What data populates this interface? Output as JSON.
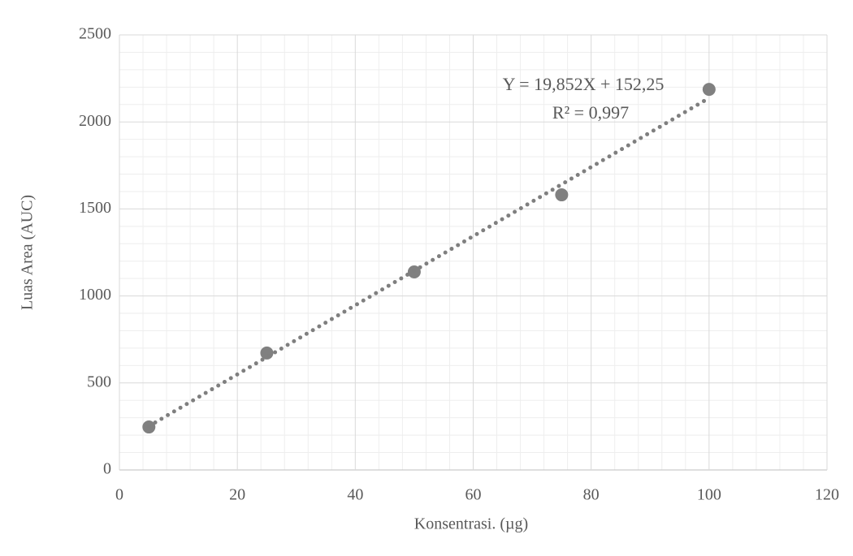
{
  "chart_data": {
    "type": "scatter",
    "x_label": "Konsentrasi. (µg)",
    "y_label": "Luas Area (AUC)",
    "x": [
      5,
      25,
      50,
      75,
      100
    ],
    "values": [
      247,
      672,
      1138,
      1581,
      2187
    ],
    "color": "#808080",
    "xlim": [
      0,
      120
    ],
    "xticks": [
      0,
      20,
      40,
      60,
      80,
      100,
      120
    ],
    "ylim": [
      0,
      2500
    ],
    "yticks": [
      0,
      500,
      1000,
      1500,
      2000,
      2500
    ],
    "grid": true,
    "minor_grid": true,
    "trendline": {
      "equation": "Y = 19,852X + 152,25",
      "r_squared": "R² = 0,997",
      "slope": 19.852,
      "intercept": 152.25,
      "color": "#7f7f7f"
    }
  }
}
